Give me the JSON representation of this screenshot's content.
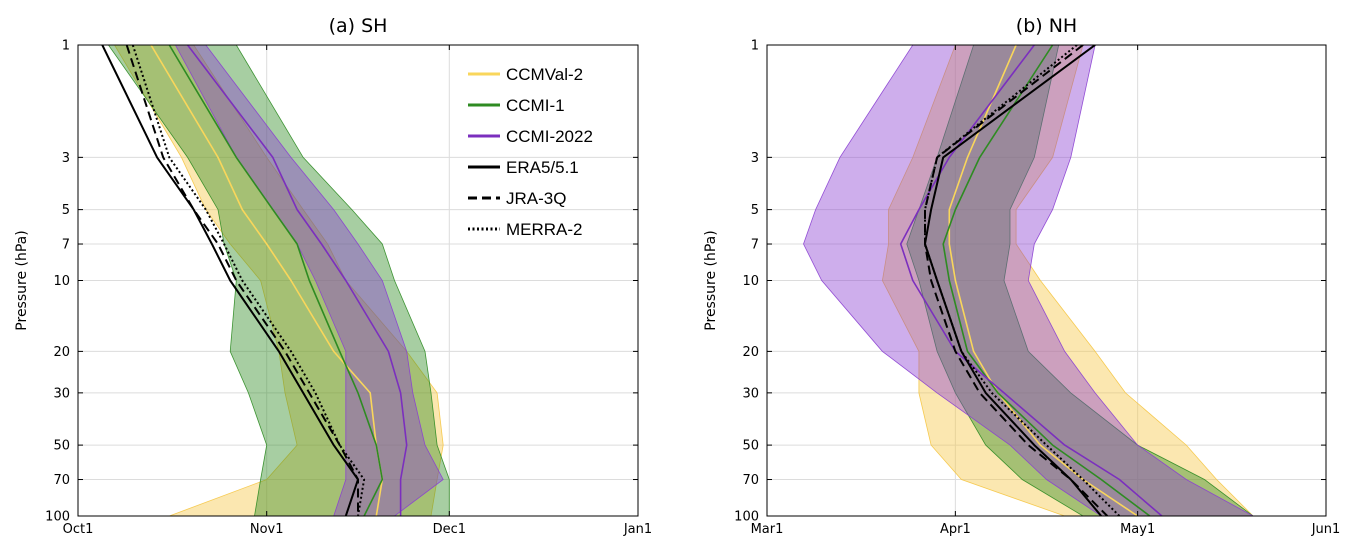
{
  "chart_data": [
    {
      "type": "area",
      "title": "(a) SH",
      "xlabel": "",
      "ylabel": "Pressure (hPa)",
      "x_axis": {
        "type": "date",
        "range": [
          "2000-10-01",
          "2001-01-01"
        ],
        "ticks": [
          "2000-10-01",
          "2000-11-01",
          "2000-12-01",
          "2001-01-01"
        ],
        "tick_labels": [
          "Oct1",
          "Nov1",
          "Dec1",
          "Jan1"
        ]
      },
      "y_axis": {
        "scale": "log",
        "reversed": true,
        "range": [
          1,
          100
        ],
        "ticks": [
          1,
          3,
          5,
          7,
          10,
          20,
          30,
          50,
          70,
          100
        ],
        "tick_labels": [
          "1",
          "3",
          "5",
          "7",
          "10",
          "20",
          "30",
          "50",
          "70",
          "100"
        ]
      },
      "grid": true,
      "legend": {
        "placement": "top-right"
      },
      "pressure": [
        1,
        3,
        5,
        7,
        10,
        20,
        30,
        50,
        70,
        100
      ],
      "bands": [
        {
          "model": "CCMVal-2",
          "low": [
            "2000-10-07",
            "2000-10-18",
            "2000-10-22",
            "2000-10-26",
            "2000-10-31",
            "2000-11-03",
            "2000-11-04",
            "2000-11-06",
            "2000-11-01",
            "2000-10-16"
          ],
          "high": [
            "2000-10-20",
            "2000-11-01",
            "2000-11-07",
            "2000-11-11",
            "2000-11-14",
            "2000-11-24",
            "2000-11-29",
            "2000-11-30",
            "2000-11-29",
            "2000-11-28"
          ]
        },
        {
          "model": "CCMI-1",
          "low": [
            "2000-10-06",
            "2000-10-19",
            "2000-10-24",
            "2000-10-25",
            "2000-10-27",
            "2000-10-26",
            "2000-10-29",
            "2000-11-01",
            "2000-10-31",
            "2000-10-30"
          ],
          "high": [
            "2000-10-27",
            "2000-11-07",
            "2000-11-15",
            "2000-11-20",
            "2000-11-22",
            "2000-11-27",
            "2000-11-28",
            "2000-11-29",
            "2000-12-01",
            "2000-12-01"
          ]
        },
        {
          "model": "CCMI-2022",
          "low": [
            "2000-10-17",
            "2000-10-27",
            "2000-11-02",
            "2000-11-06",
            "2000-11-09",
            "2000-11-14",
            "2000-11-14",
            "2000-11-14",
            "2000-11-14",
            "2000-11-12"
          ],
          "high": [
            "2000-10-22",
            "2000-11-05",
            "2000-11-12",
            "2000-11-16",
            "2000-11-20",
            "2000-11-24",
            "2000-11-25",
            "2000-11-27",
            "2000-11-30",
            "2000-11-22"
          ]
        }
      ],
      "series": [
        {
          "name": "CCMVal-2",
          "color": "#f9d65b",
          "style": "solid",
          "x": [
            "2000-10-13",
            "2000-10-24",
            "2000-10-28",
            "2000-11-01",
            "2000-11-05",
            "2000-11-12",
            "2000-11-18",
            "2000-11-19",
            "2000-11-20",
            "2000-11-19"
          ]
        },
        {
          "name": "CCMI-1",
          "color": "#2e8b22",
          "style": "solid",
          "x": [
            "2000-10-16",
            "2000-10-27",
            "2000-11-02",
            "2000-11-06",
            "2000-11-08",
            "2000-11-13",
            "2000-11-16",
            "2000-11-19",
            "2000-11-20",
            "2000-11-17"
          ]
        },
        {
          "name": "CCMI-2022",
          "color": "#7b2fbe",
          "style": "solid",
          "x": [
            "2000-10-19",
            "2000-11-02",
            "2000-11-06",
            "2000-11-10",
            "2000-11-14",
            "2000-11-21",
            "2000-11-23",
            "2000-11-24",
            "2000-11-23",
            "2000-11-23"
          ]
        },
        {
          "name": "ERA5/5.1",
          "color": "#000000",
          "style": "solid",
          "x": [
            "2000-10-05",
            "2000-10-14",
            "2000-10-20",
            "2000-10-23",
            "2000-10-26",
            "2000-11-03",
            "2000-11-07",
            "2000-11-12",
            "2000-11-16",
            "2000-11-14"
          ]
        },
        {
          "name": "JRA-3Q",
          "color": "#000000",
          "style": "dashed",
          "x": [
            "2000-10-09",
            "2000-10-15",
            "2000-10-20",
            "2000-10-24",
            "2000-10-27",
            "2000-11-04",
            "2000-11-08",
            "2000-11-13",
            "2000-11-16",
            "2000-11-16"
          ]
        },
        {
          "name": "MERRA-2",
          "color": "#000000",
          "style": "dotted",
          "x": [
            "2000-10-10",
            "2000-10-16",
            "2000-10-22",
            "2000-10-25",
            "2000-10-28",
            "2000-11-05",
            "2000-11-09",
            "2000-11-13",
            "2000-11-17",
            "2000-11-16"
          ]
        }
      ]
    },
    {
      "type": "area",
      "title": "(b) NH",
      "xlabel": "",
      "ylabel": "Pressure (hPa)",
      "x_axis": {
        "type": "date",
        "range": [
          "2001-03-01",
          "2001-06-01"
        ],
        "ticks": [
          "2001-03-01",
          "2001-04-01",
          "2001-05-01",
          "2001-06-01"
        ],
        "tick_labels": [
          "Mar1",
          "Apr1",
          "May1",
          "Jun1"
        ]
      },
      "y_axis": {
        "scale": "log",
        "reversed": true,
        "range": [
          1,
          100
        ],
        "ticks": [
          1,
          3,
          5,
          7,
          10,
          20,
          30,
          50,
          70,
          100
        ],
        "tick_labels": [
          "1",
          "3",
          "5",
          "7",
          "10",
          "20",
          "30",
          "50",
          "70",
          "100"
        ]
      },
      "grid": true,
      "legend": null,
      "pressure": [
        1,
        3,
        5,
        7,
        10,
        20,
        30,
        50,
        70,
        100
      ],
      "bands": [
        {
          "model": "CCMVal-2",
          "low": [
            "2001-04-01",
            "2001-03-25",
            "2001-03-21",
            "2001-03-21",
            "2001-03-20",
            "2001-03-26",
            "2001-03-26",
            "2001-03-28",
            "2001-04-02",
            "2001-04-19"
          ],
          "high": [
            "2001-04-22",
            "2001-04-17",
            "2001-04-11",
            "2001-04-11",
            "2001-04-15",
            "2001-04-24",
            "2001-04-29",
            "2001-05-09",
            "2001-05-14",
            "2001-05-20"
          ]
        },
        {
          "model": "CCMI-1",
          "low": [
            "2001-04-04",
            "2001-03-29",
            "2001-03-26",
            "2001-03-24",
            "2001-03-26",
            "2001-03-29",
            "2001-04-01",
            "2001-04-06",
            "2001-04-12",
            "2001-04-22"
          ],
          "high": [
            "2001-04-18",
            "2001-04-14",
            "2001-04-10",
            "2001-04-10",
            "2001-04-09",
            "2001-04-13",
            "2001-04-20",
            "2001-05-01",
            "2001-05-12",
            "2001-05-20"
          ]
        },
        {
          "model": "CCMI-2022",
          "low": [
            "2001-03-25",
            "2001-03-13",
            "2001-03-09",
            "2001-03-07",
            "2001-03-10",
            "2001-03-20",
            "2001-03-29",
            "2001-04-10",
            "2001-04-16",
            "2001-04-25"
          ],
          "high": [
            "2001-04-24",
            "2001-04-20",
            "2001-04-17",
            "2001-04-14",
            "2001-04-13",
            "2001-04-19",
            "2001-04-24",
            "2001-05-01",
            "2001-05-09",
            "2001-05-20"
          ]
        }
      ],
      "series": [
        {
          "name": "CCMVal-2",
          "color": "#f9d65b",
          "style": "solid",
          "x": [
            "2001-04-11",
            "2001-04-03",
            "2001-03-31",
            "2001-03-31",
            "2001-04-01",
            "2001-04-04",
            "2001-04-08",
            "2001-04-15",
            "2001-04-22",
            "2001-05-01"
          ]
        },
        {
          "name": "CCMI-1",
          "color": "#2e8b22",
          "style": "solid",
          "x": [
            "2001-04-17",
            "2001-04-05",
            "2001-04-01",
            "2001-03-30",
            "2001-03-31",
            "2001-04-03",
            "2001-04-08",
            "2001-04-17",
            "2001-04-25",
            "2001-05-03"
          ]
        },
        {
          "name": "CCMI-2022",
          "color": "#7b2fbe",
          "style": "solid",
          "x": [
            "2001-04-14",
            "2001-03-31",
            "2001-03-26",
            "2001-03-23",
            "2001-03-25",
            "2001-04-01",
            "2001-04-09",
            "2001-04-19",
            "2001-04-28",
            "2001-05-05"
          ]
        },
        {
          "name": "ERA5/5.1",
          "color": "#000000",
          "style": "solid",
          "x": [
            "2001-04-24",
            "2001-03-30",
            "2001-03-28",
            "2001-03-27",
            "2001-03-29",
            "2001-04-02",
            "2001-04-06",
            "2001-04-14",
            "2001-04-20",
            "2001-04-25"
          ]
        },
        {
          "name": "JRA-3Q",
          "color": "#000000",
          "style": "dashed",
          "x": [
            "2001-04-22",
            "2001-03-29",
            "2001-03-27",
            "2001-03-27",
            "2001-03-28",
            "2001-04-01",
            "2001-04-05",
            "2001-04-13",
            "2001-04-20",
            "2001-04-26"
          ]
        },
        {
          "name": "MERRA-2",
          "color": "#000000",
          "style": "dotted",
          "x": [
            "2001-04-21",
            "2001-03-29",
            "2001-03-27",
            "2001-03-27",
            "2001-03-29",
            "2001-04-02",
            "2001-04-07",
            "2001-04-16",
            "2001-04-22",
            "2001-04-28"
          ]
        }
      ]
    }
  ],
  "legend_items": [
    {
      "name": "CCMVal-2",
      "color": "#f9d65b",
      "style": "solid"
    },
    {
      "name": "CCMI-1",
      "color": "#2e8b22",
      "style": "solid"
    },
    {
      "name": "CCMI-2022",
      "color": "#7b2fbe",
      "style": "solid"
    },
    {
      "name": "ERA5/5.1",
      "color": "#000000",
      "style": "solid"
    },
    {
      "name": "JRA-3Q",
      "color": "#000000",
      "style": "dashed"
    },
    {
      "name": "MERRA-2",
      "color": "#000000",
      "style": "dotted"
    }
  ],
  "band_colors": {
    "CCMVal-2": "#f5c542",
    "CCMI-1": "#2e8b22",
    "CCMI-2022": "#8a3fd1"
  }
}
